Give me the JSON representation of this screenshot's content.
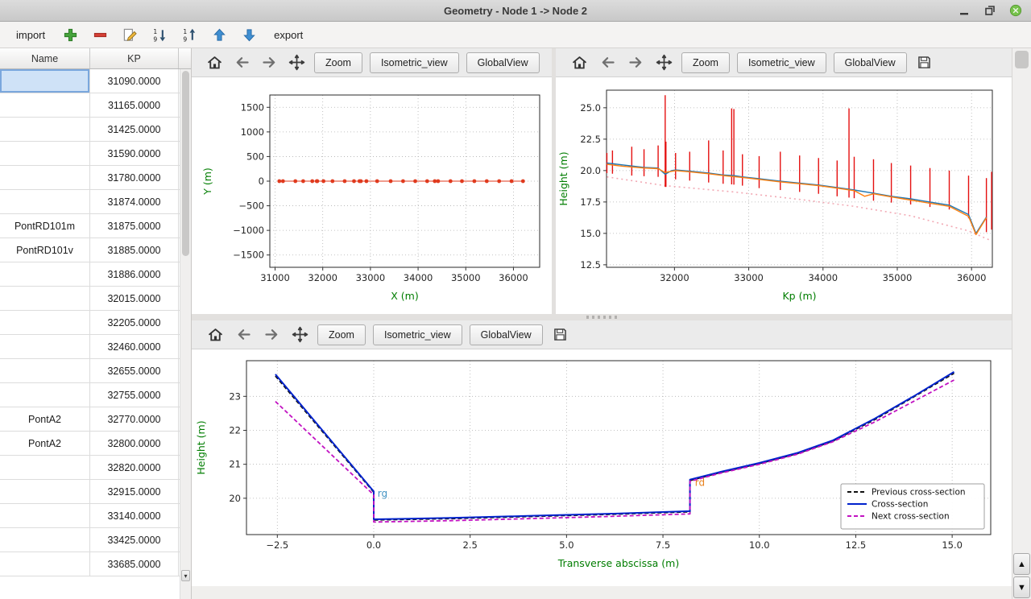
{
  "window": {
    "title": "Geometry - Node 1 -> Node 2",
    "control_icons": [
      "minimize-icon",
      "restore-icon",
      "close-icon"
    ]
  },
  "toolbar": {
    "import_label": "import",
    "export_label": "export",
    "icons": [
      "add-icon",
      "remove-icon",
      "edit-icon",
      "sort-descending-icon",
      "sort-ascending-icon",
      "move-up-icon",
      "move-down-icon"
    ]
  },
  "table": {
    "columns": [
      "Name",
      "KP"
    ],
    "rows": [
      {
        "name": "",
        "kp": "31090.0000",
        "selected": true
      },
      {
        "name": "",
        "kp": "31165.0000"
      },
      {
        "name": "",
        "kp": "31425.0000"
      },
      {
        "name": "",
        "kp": "31590.0000"
      },
      {
        "name": "",
        "kp": "31780.0000"
      },
      {
        "name": "",
        "kp": "31874.0000"
      },
      {
        "name": "PontRD101m",
        "kp": "31875.0000"
      },
      {
        "name": "PontRD101v",
        "kp": "31885.0000"
      },
      {
        "name": "",
        "kp": "31886.0000"
      },
      {
        "name": "",
        "kp": "32015.0000"
      },
      {
        "name": "",
        "kp": "32205.0000"
      },
      {
        "name": "",
        "kp": "32460.0000"
      },
      {
        "name": "",
        "kp": "32655.0000"
      },
      {
        "name": "",
        "kp": "32755.0000"
      },
      {
        "name": "PontA2",
        "kp": "32770.0000"
      },
      {
        "name": "PontA2",
        "kp": "32800.0000"
      },
      {
        "name": "",
        "kp": "32820.0000"
      },
      {
        "name": "",
        "kp": "32915.0000"
      },
      {
        "name": "",
        "kp": "33140.0000"
      },
      {
        "name": "",
        "kp": "33425.0000"
      },
      {
        "name": "",
        "kp": "33685.0000"
      }
    ]
  },
  "plot_toolbar": {
    "zoom": "Zoom",
    "isometric": "Isometric_view",
    "global_view": "GlobalView",
    "overflow": "»",
    "icons": [
      "home-icon",
      "back-icon",
      "forward-icon",
      "pan-icon",
      "save-icon"
    ]
  },
  "colors": {
    "axis_label_green": "#007d00",
    "marker_red": "#e51010",
    "line_blue": "#1f77b4",
    "line_orange": "#ff7f0e",
    "cross_section_blue": "#0022cc",
    "next_section_magenta": "#c213c2",
    "prev_section_black": "#111111",
    "selection_blue": "#cfe2f7"
  },
  "chart_data": [
    {
      "id": "plan",
      "type": "scatter",
      "title": "",
      "xlabel": "X (m)",
      "ylabel": "Y (m)",
      "xlim": [
        30890,
        36550
      ],
      "ylim": [
        -1750,
        1750
      ],
      "xticks": [
        31000,
        32000,
        33000,
        34000,
        35000,
        36000
      ],
      "yticks": [
        -1500,
        -1000,
        -500,
        0,
        500,
        1000,
        1500
      ],
      "ytick_labels": [
        "−1500",
        "−1000",
        "−500",
        "0",
        "500",
        "1000",
        "1500"
      ],
      "grid": true,
      "series": [
        {
          "name": "river-axis-points",
          "type": "line",
          "marker": true,
          "marker_size": 2.4,
          "color": "#e03a1e",
          "width": 1,
          "x": [
            31090,
            31165,
            31425,
            31590,
            31780,
            31875,
            31885,
            32015,
            32205,
            32460,
            32655,
            32770,
            32800,
            32915,
            33140,
            33425,
            33685,
            33940,
            34190,
            34350,
            34420,
            34680,
            34920,
            35180,
            35440,
            35700,
            35960,
            36200
          ],
          "y_const": 0
        }
      ]
    },
    {
      "id": "profile",
      "type": "line",
      "title": "",
      "xlabel": "Kp (m)",
      "ylabel": "Height (m)",
      "xlim": [
        31085,
        36280
      ],
      "ylim": [
        12.3,
        26.4
      ],
      "xticks": [
        32000,
        33000,
        34000,
        35000,
        36000
      ],
      "yticks": [
        12.5,
        15.0,
        17.5,
        20.0,
        22.5,
        25.0
      ],
      "ytick_labels": [
        "12.5",
        "15.0",
        "17.5",
        "20.0",
        "22.5",
        "25.0"
      ],
      "grid": true,
      "series": [
        {
          "name": "bed-line-dotted",
          "type": "line",
          "color": "#f2a9b4",
          "width": 1.6,
          "dash": "2 4",
          "points": [
            [
              31090,
              19.5
            ],
            [
              31875,
              18.8
            ],
            [
              32800,
              18.3
            ],
            [
              33685,
              17.7
            ],
            [
              34420,
              17.15
            ],
            [
              35180,
              16.4
            ],
            [
              35960,
              15.2
            ],
            [
              36270,
              14.4
            ]
          ]
        },
        {
          "name": "cross-section-markers",
          "type": "vlines",
          "color": "#e51010",
          "width": 1.4,
          "lines": [
            [
              31090,
              19.8,
              21.4
            ],
            [
              31165,
              19.75,
              21.6
            ],
            [
              31425,
              19.6,
              21.9
            ],
            [
              31590,
              19.55,
              21.7
            ],
            [
              31780,
              19.5,
              22.0
            ],
            [
              31875,
              18.7,
              26.0
            ],
            [
              31885,
              18.7,
              22.3
            ],
            [
              32015,
              19.3,
              21.4
            ],
            [
              32205,
              19.2,
              21.5
            ],
            [
              32460,
              19.05,
              22.4
            ],
            [
              32655,
              18.95,
              21.6
            ],
            [
              32770,
              18.9,
              24.95
            ],
            [
              32800,
              18.88,
              24.9
            ],
            [
              32915,
              18.8,
              21.3
            ],
            [
              33140,
              18.6,
              21.15
            ],
            [
              33425,
              18.45,
              21.5
            ],
            [
              33685,
              18.3,
              21.2
            ],
            [
              33940,
              18.15,
              21.0
            ],
            [
              34190,
              17.95,
              20.8
            ],
            [
              34350,
              17.85,
              24.95
            ],
            [
              34420,
              17.8,
              21.1
            ],
            [
              34680,
              17.6,
              20.9
            ],
            [
              34920,
              17.45,
              20.6
            ],
            [
              35180,
              17.3,
              20.4
            ],
            [
              35440,
              17.1,
              20.2
            ],
            [
              35700,
              16.9,
              20.0
            ],
            [
              35960,
              16.2,
              19.6
            ],
            [
              36200,
              15.1,
              19.4
            ],
            [
              36270,
              15.3,
              19.9
            ]
          ]
        },
        {
          "name": "left-bank-line",
          "type": "line",
          "color": "#1f77b4",
          "width": 1.4,
          "points": [
            [
              31090,
              20.6
            ],
            [
              31300,
              20.45
            ],
            [
              31590,
              20.25
            ],
            [
              31780,
              20.2
            ],
            [
              31875,
              19.7
            ],
            [
              31960,
              20.0
            ],
            [
              32015,
              20.05
            ],
            [
              32205,
              19.95
            ],
            [
              32460,
              19.8
            ],
            [
              32655,
              19.65
            ],
            [
              32800,
              19.6
            ],
            [
              32915,
              19.5
            ],
            [
              33140,
              19.35
            ],
            [
              33425,
              19.15
            ],
            [
              33685,
              19.0
            ],
            [
              33940,
              18.85
            ],
            [
              34190,
              18.65
            ],
            [
              34420,
              18.45
            ],
            [
              34680,
              18.2
            ],
            [
              34920,
              17.95
            ],
            [
              35180,
              17.75
            ],
            [
              35440,
              17.5
            ],
            [
              35700,
              17.25
            ],
            [
              35960,
              16.5
            ],
            [
              36060,
              15.0
            ],
            [
              36200,
              16.3
            ]
          ]
        },
        {
          "name": "right-bank-line",
          "type": "line",
          "color": "#ff7f0e",
          "width": 1.4,
          "points": [
            [
              31090,
              20.5
            ],
            [
              31300,
              20.35
            ],
            [
              31590,
              20.2
            ],
            [
              31780,
              20.15
            ],
            [
              31875,
              19.85
            ],
            [
              32015,
              20.0
            ],
            [
              32205,
              19.9
            ],
            [
              32460,
              19.75
            ],
            [
              32655,
              19.6
            ],
            [
              32915,
              19.45
            ],
            [
              33140,
              19.3
            ],
            [
              33425,
              19.1
            ],
            [
              33685,
              18.95
            ],
            [
              33940,
              18.8
            ],
            [
              34190,
              18.6
            ],
            [
              34420,
              18.4
            ],
            [
              34560,
              17.95
            ],
            [
              34680,
              18.15
            ],
            [
              34920,
              17.9
            ],
            [
              35180,
              17.65
            ],
            [
              35440,
              17.4
            ],
            [
              35700,
              17.15
            ],
            [
              35960,
              16.35
            ],
            [
              36060,
              14.9
            ],
            [
              36200,
              16.25
            ]
          ]
        }
      ]
    },
    {
      "id": "cross_section",
      "type": "line",
      "title": "",
      "xlabel": "Transverse abscissa (m)",
      "ylabel": "Height (m)",
      "xlim": [
        -3.3,
        16.0
      ],
      "ylim": [
        18.93,
        24.05
      ],
      "xticks": [
        -2.5,
        0,
        2.5,
        5,
        7.5,
        10,
        12.5,
        15
      ],
      "xtick_labels": [
        "−2.5",
        "0.0",
        "2.5",
        "5.0",
        "7.5",
        "10.0",
        "12.5",
        "15.0"
      ],
      "yticks": [
        20,
        21,
        22,
        23
      ],
      "ytick_labels": [
        "20",
        "21",
        "22",
        "23"
      ],
      "grid": true,
      "series": [
        {
          "name": "previous-cross-section",
          "type": "line",
          "color": "#111111",
          "width": 1.8,
          "dash": "5 3",
          "points": [
            [
              -2.55,
              23.6
            ],
            [
              0,
              20.18
            ],
            [
              0,
              19.36
            ],
            [
              2,
              19.4
            ],
            [
              4,
              19.46
            ],
            [
              6,
              19.52
            ],
            [
              8.2,
              19.6
            ],
            [
              8.2,
              20.52
            ],
            [
              9,
              20.76
            ],
            [
              10,
              21.02
            ],
            [
              11,
              21.32
            ],
            [
              11.9,
              21.68
            ],
            [
              13,
              22.32
            ],
            [
              14,
              22.98
            ],
            [
              15.05,
              23.68
            ]
          ]
        },
        {
          "name": "cross-section",
          "type": "line",
          "color": "#0022cc",
          "width": 2,
          "points": [
            [
              -2.55,
              23.65
            ],
            [
              0,
              20.2
            ],
            [
              0,
              19.38
            ],
            [
              2,
              19.42
            ],
            [
              4,
              19.48
            ],
            [
              6,
              19.54
            ],
            [
              8.2,
              19.62
            ],
            [
              8.2,
              20.55
            ],
            [
              9,
              20.78
            ],
            [
              10,
              21.04
            ],
            [
              11,
              21.34
            ],
            [
              11.9,
              21.7
            ],
            [
              13,
              22.35
            ],
            [
              14,
              23.0
            ],
            [
              15.05,
              23.72
            ]
          ]
        },
        {
          "name": "next-cross-section",
          "type": "line",
          "color": "#c213c2",
          "width": 1.8,
          "dash": "5 3",
          "points": [
            [
              -2.55,
              22.85
            ],
            [
              0,
              20.1
            ],
            [
              0,
              19.3
            ],
            [
              2,
              19.34
            ],
            [
              4,
              19.4
            ],
            [
              6,
              19.46
            ],
            [
              8.2,
              19.54
            ],
            [
              8.2,
              20.5
            ],
            [
              9,
              20.74
            ],
            [
              10,
              21.0
            ],
            [
              11,
              21.3
            ],
            [
              11.9,
              21.66
            ],
            [
              13,
              22.25
            ],
            [
              14,
              22.85
            ],
            [
              15.05,
              23.48
            ]
          ]
        }
      ],
      "annotations": [
        {
          "text": "rg",
          "x": 0.1,
          "y": 20.04,
          "color": "#4393c3"
        },
        {
          "text": "rd",
          "x": 8.33,
          "y": 20.36,
          "color": "#e8821e"
        }
      ],
      "legend": {
        "position": "lower right",
        "items": [
          {
            "label": "Previous cross-section",
            "color": "#111111",
            "dash": "5 3"
          },
          {
            "label": "Cross-section",
            "color": "#0022cc",
            "dash": ""
          },
          {
            "label": "Next cross-section",
            "color": "#c213c2",
            "dash": "5 3"
          }
        ]
      }
    }
  ]
}
